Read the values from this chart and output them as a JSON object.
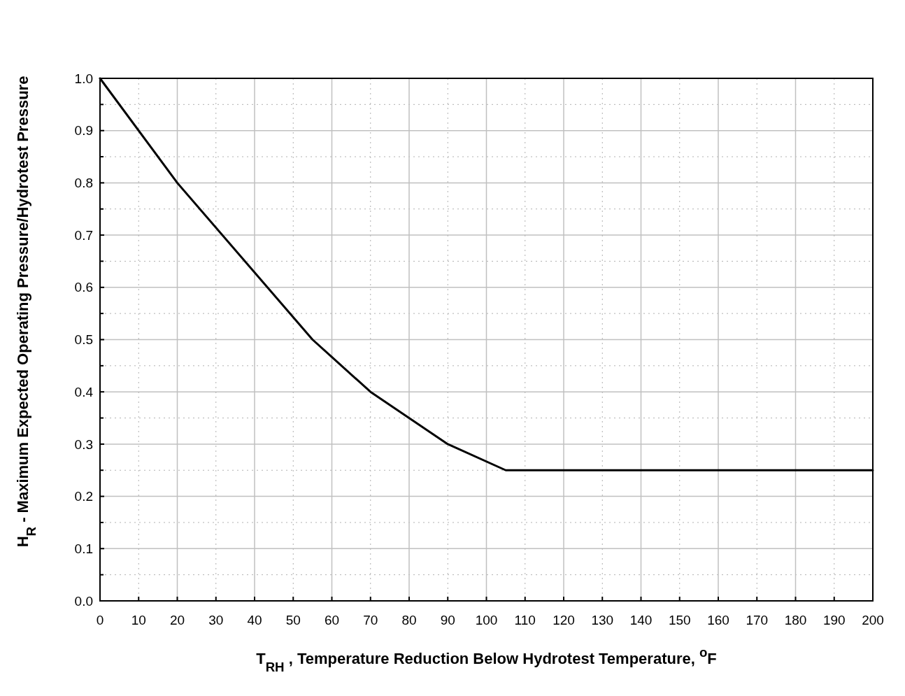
{
  "chart_data": {
    "type": "line",
    "xlabel": "T$_{RH}$ , Temperature Reduction Below Hydrotest Temperature, $^{o}$F",
    "ylabel": "H$_{R}$ - Maximum Expected Operating Pressure/Hydrotest Pressure",
    "x": [
      0,
      20,
      55,
      70,
      90,
      105,
      200
    ],
    "series": [
      {
        "color": "#000000",
        "values": [
          1.0,
          0.8,
          0.5,
          0.4,
          0.3,
          0.25,
          0.25
        ]
      }
    ],
    "xlim": [
      0,
      200
    ],
    "xticks": [
      0,
      10,
      20,
      30,
      40,
      50,
      60,
      70,
      80,
      90,
      100,
      110,
      120,
      130,
      140,
      150,
      160,
      170,
      180,
      190,
      200
    ],
    "ylim": [
      0,
      1
    ],
    "yticks": [
      {
        "value": 0,
        "label": "0.0"
      },
      0.1,
      0.2,
      0.3,
      0.4,
      0.5,
      0.6,
      0.7,
      0.8,
      0.9,
      {
        "value": 1,
        "label": "1.0"
      }
    ],
    "grid": true,
    "marker": "none",
    "line_style": "solid"
  }
}
